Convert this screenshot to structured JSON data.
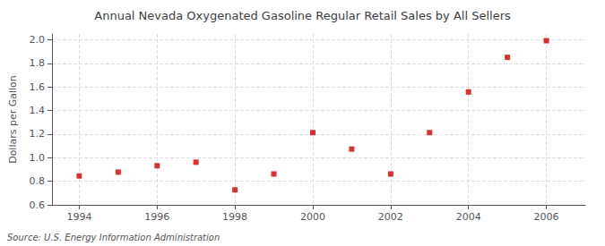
{
  "chart_data": {
    "type": "scatter",
    "title": "Annual Nevada Oxygenated Gasoline Regular Retail Sales by All Sellers",
    "ylabel": "Dollars per Gallon",
    "annotation": "Source: U.S. Energy Information Administration",
    "x": [
      1994,
      1995,
      1996,
      1997,
      1998,
      1999,
      2000,
      2001,
      2002,
      2003,
      2004,
      2005,
      2006
    ],
    "values": [
      0.845,
      0.878,
      0.932,
      0.962,
      0.727,
      0.862,
      1.213,
      1.073,
      0.862,
      1.213,
      1.558,
      1.852,
      1.993
    ],
    "color": "#cc0000",
    "marker": "square",
    "xlim": [
      1993.3,
      2007.0
    ],
    "xticks": [
      1994,
      1996,
      1998,
      2000,
      2002,
      2004,
      2006
    ],
    "ylim": [
      0.6,
      2.05
    ],
    "yticks": [
      0.6,
      0.8,
      {
        "value": 1.0,
        "label": "1.0"
      },
      1.2,
      1.4,
      1.6,
      1.8,
      {
        "value": 2.0,
        "label": "2.0"
      }
    ],
    "grid": true
  }
}
